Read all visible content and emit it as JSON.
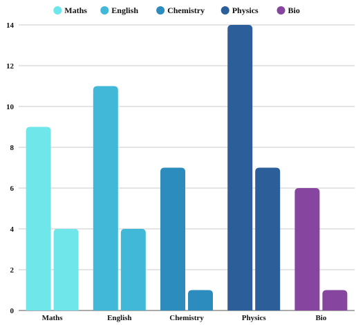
{
  "chart_data": {
    "type": "bar",
    "categories": [
      "Maths",
      "English",
      "Chemistry",
      "Physics",
      "Bio"
    ],
    "series": [
      {
        "values": [
          9,
          11,
          7,
          14,
          6
        ]
      },
      {
        "values": [
          4,
          4,
          1,
          7,
          1
        ]
      }
    ],
    "legend": [
      {
        "label": "Maths",
        "color": "#6ee6ea"
      },
      {
        "label": "English",
        "color": "#41b8d8"
      },
      {
        "label": "Chemistry",
        "color": "#2b8cbd"
      },
      {
        "label": "Physics",
        "color": "#2c5f9a"
      },
      {
        "label": "Bio",
        "color": "#8646a0"
      }
    ],
    "bar_colors": [
      "#6ee6ea",
      "#41b8d8",
      "#2b8cbd",
      "#2c5f9a",
      "#8646a0"
    ],
    "ylim": [
      0,
      14
    ],
    "yticks": [
      0,
      2,
      4,
      6,
      8,
      10,
      12,
      14
    ],
    "grid": true,
    "legend_position": "top",
    "title": "",
    "xlabel": "",
    "ylabel": ""
  }
}
